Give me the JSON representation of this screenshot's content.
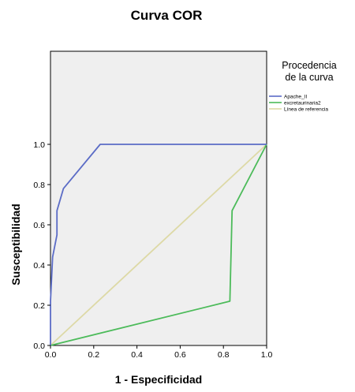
{
  "chart_data": {
    "type": "line",
    "title": "Curva COR",
    "xlabel": "1 - Especificidad",
    "ylabel": "Susceptibilidad",
    "xlim": [
      0,
      1
    ],
    "ylim": [
      0,
      1
    ],
    "x_ticks": [
      "0.0",
      "0.2",
      "0.4",
      "0.6",
      "0.8",
      "1.0"
    ],
    "y_ticks": [
      "0.0",
      "0.2",
      "0.4",
      "0.6",
      "0.8",
      "1.0"
    ],
    "grid": false,
    "legend": {
      "title_lines": [
        "Procedencia",
        "de la curva"
      ],
      "placement": "right"
    },
    "series": [
      {
        "name": "Apache_II",
        "color": "#5b6cc6",
        "points": [
          [
            0,
            0
          ],
          [
            0,
            0.22
          ],
          [
            0.01,
            0.44
          ],
          [
            0.03,
            0.55
          ],
          [
            0.03,
            0.67
          ],
          [
            0.06,
            0.78
          ],
          [
            0.23,
            1.0
          ],
          [
            1.0,
            1.0
          ]
        ]
      },
      {
        "name": "excretaurinaria2",
        "color": "#4cbb5a",
        "points": [
          [
            0,
            0
          ],
          [
            0.83,
            0.22
          ],
          [
            0.84,
            0.67
          ],
          [
            1.0,
            1.0
          ]
        ]
      },
      {
        "name": "Línea de referencia",
        "color": "#ddd9a6",
        "points": [
          [
            0,
            0
          ],
          [
            1.0,
            1.0
          ]
        ]
      }
    ]
  }
}
